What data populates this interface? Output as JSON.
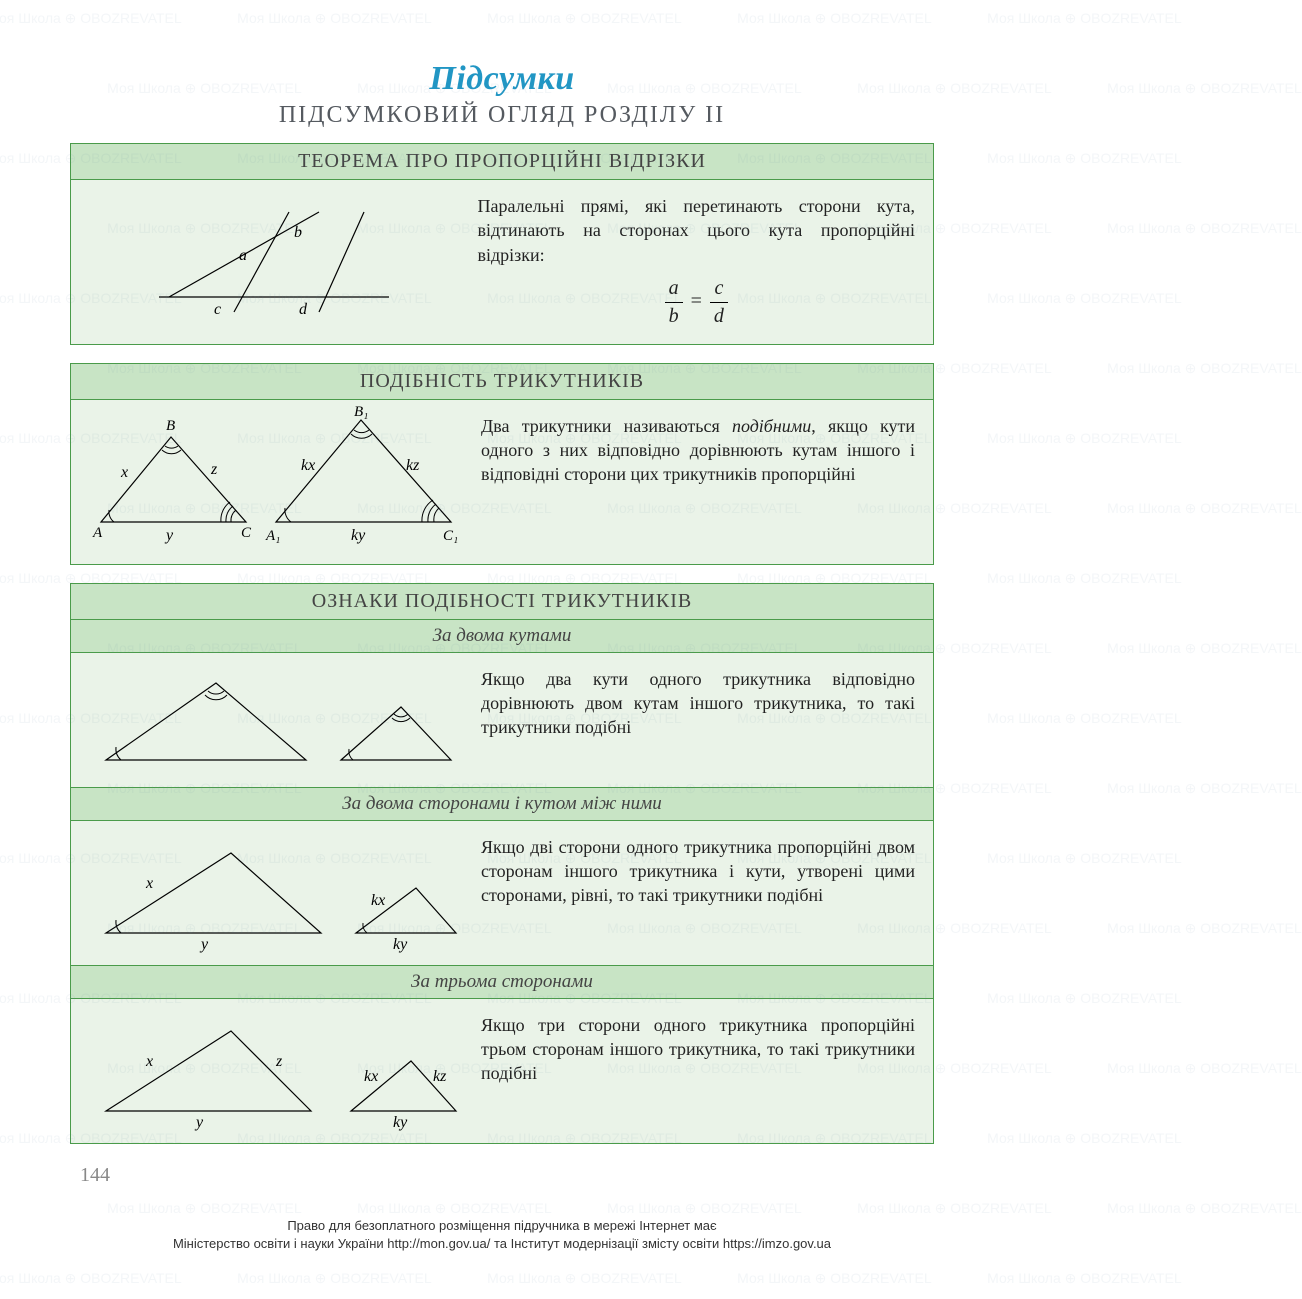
{
  "colors": {
    "accent_title": "#2196c4",
    "border": "#4a9b4a",
    "header_bg": "#c8e4c5",
    "row_bg": "#eaf3e8",
    "watermark": "#6b8caa"
  },
  "watermark_text": "Моя Школа ⊕ OBOZREVATEL",
  "page": {
    "title": "Підсумки",
    "subtitle": "ПІДСУМКОВИЙ ОГЛЯД РОЗДІЛУ II",
    "page_number": "144"
  },
  "sections": [
    {
      "header": "ТЕОРЕМА ПРО ПРОПОРЦІЙНІ ВІДРІЗКИ",
      "text": "Паралельні прямі, які перетинають сторони кута, відтинають на сторонах цього кута пропорційні відрізки:",
      "formula": {
        "a": "a",
        "b": "b",
        "c": "c",
        "d": "d"
      },
      "figure": {
        "type": "proportional-segments",
        "labels": {
          "a": "a",
          "b": "b",
          "c": "c",
          "d": "d"
        }
      }
    },
    {
      "header": "ПОДІБНІСТЬ ТРИКУТНИКІВ",
      "text_html": "Два трикутники називаються <em class='term'>подібними</em>, якщо кути одного з них відповідно дорівнюють кутам іншого і відповідні сторони цих трикутників пропорційні",
      "figure": {
        "type": "two-similar-triangles",
        "tri1": {
          "A": "A",
          "B": "B",
          "C": "C",
          "x": "x",
          "y": "y",
          "z": "z"
        },
        "tri2": {
          "A": "A₁",
          "B": "B₁",
          "C": "C₁",
          "x": "kx",
          "y": "ky",
          "z": "kz"
        }
      }
    },
    {
      "header": "ОЗНАКИ ПОДІБНОСТІ ТРИКУТНИКІВ",
      "subsections": [
        {
          "title": "За двома кутами",
          "text": "Якщо два кути одного трикутника відповідно дорівнюють двом кутам іншого трикутника, то такі трикутники подібні",
          "figure": {
            "type": "two-angles"
          }
        },
        {
          "title": "За двома сторонами і кутом між ними",
          "text": "Якщо дві сторони одного трикутника пропорційні двом сторонам іншого трикутника і кути, утворені цими сторонами, рівні, то такі трикутники подібні",
          "figure": {
            "type": "two-sides-angle",
            "labels": {
              "x": "x",
              "y": "y",
              "kx": "kx",
              "ky": "ky"
            }
          }
        },
        {
          "title": "За трьома сторонами",
          "text": "Якщо три сторони одного трикутника пропорційні трьом сторонам іншого трикутника, то такі трикутники подібні",
          "figure": {
            "type": "three-sides",
            "labels": {
              "x": "x",
              "y": "y",
              "z": "z",
              "kx": "kx",
              "ky": "ky",
              "kz": "kz"
            }
          }
        }
      ]
    }
  ],
  "footer": {
    "line1": "Право для безоплатного розміщення підручника в мережі Інтернет має",
    "line2": "Міністерство освіти і науки України http://mon.gov.ua/ та Інститут модернізації змісту освіти https://imzo.gov.ua"
  }
}
